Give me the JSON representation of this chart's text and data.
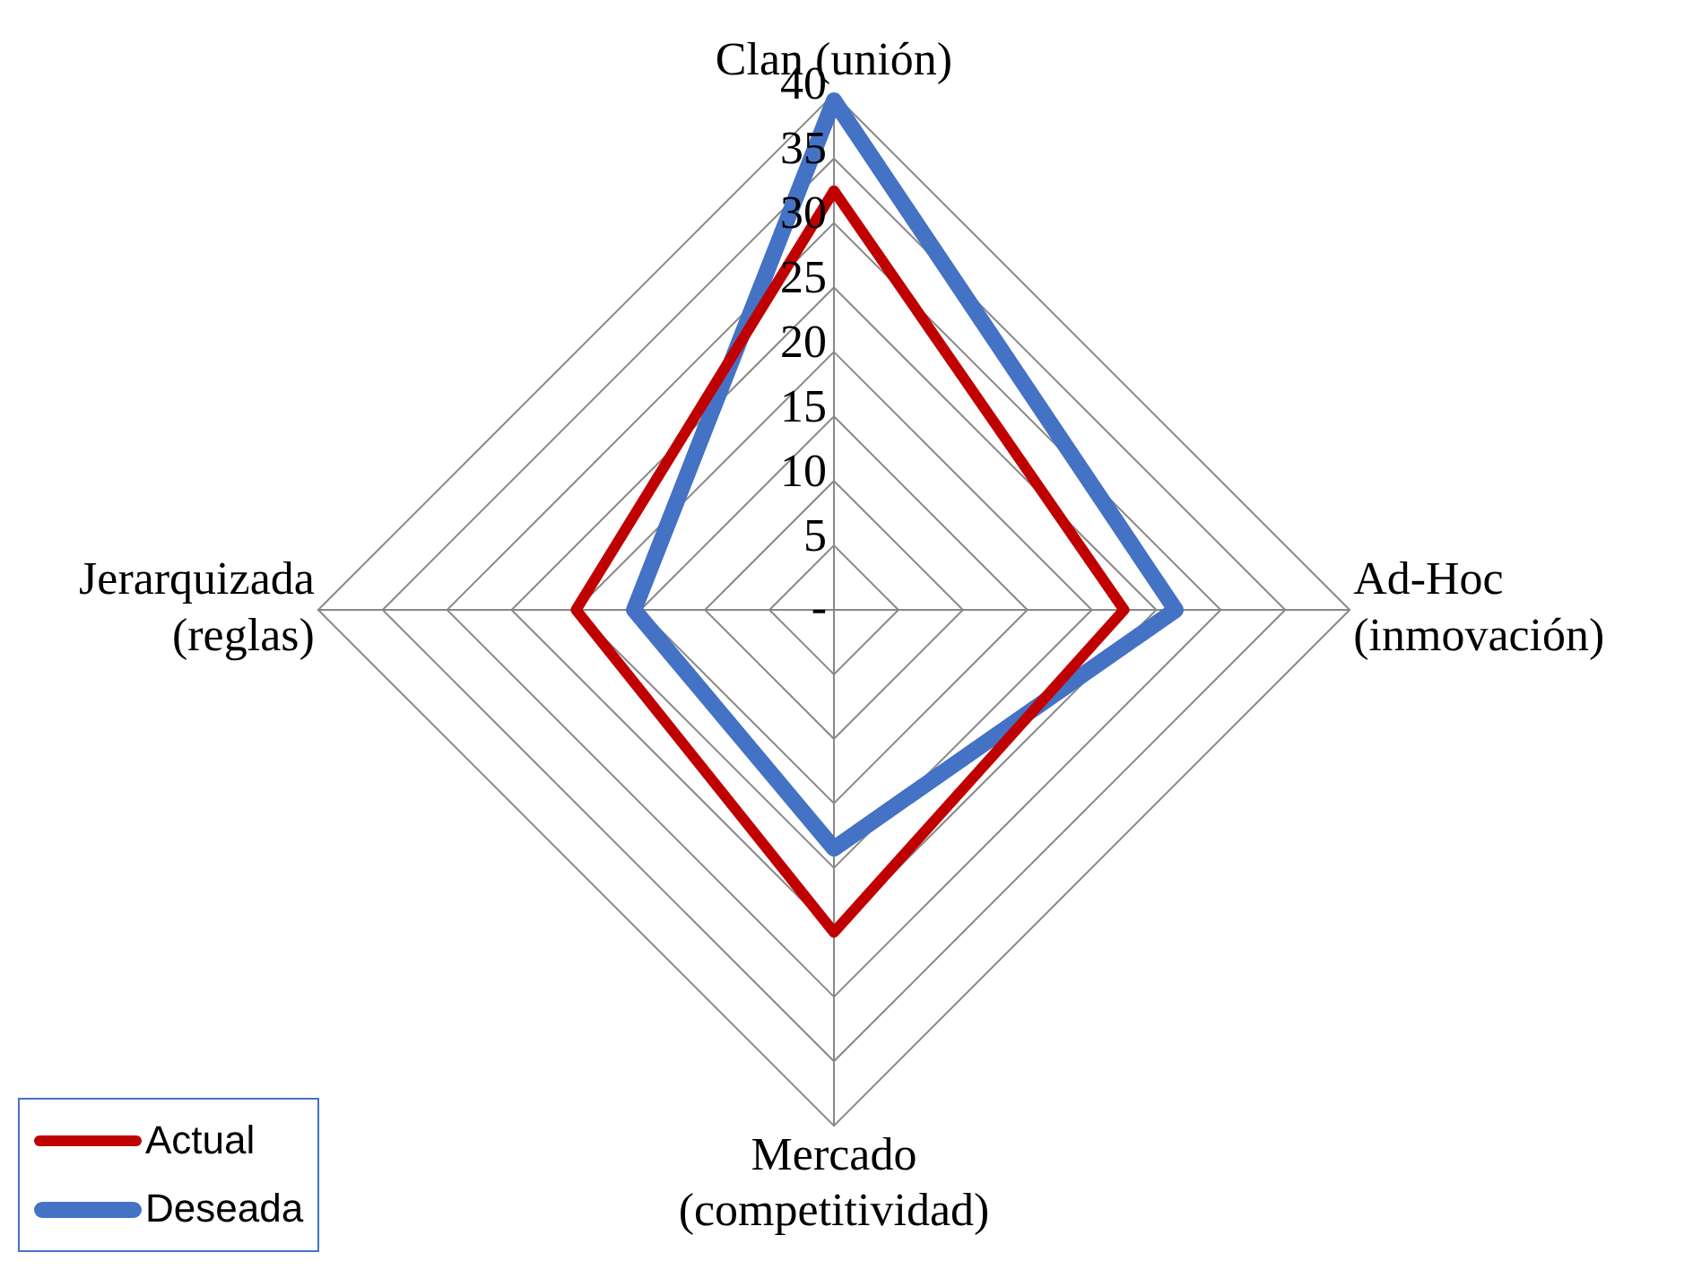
{
  "chart_data": {
    "type": "radar",
    "categories": [
      "Clan (unión)",
      "Ad-Hoc (inmovación)",
      "Mercado (competitividad)",
      "Jerarquizada (reglas)"
    ],
    "series": [
      {
        "name": "Actual",
        "color": "#c00000",
        "values": [
          32.5,
          22.5,
          25,
          20
        ]
      },
      {
        "name": "Deseada",
        "color": "#4472c4",
        "values": [
          39.5,
          26.5,
          18.5,
          15.5
        ]
      }
    ],
    "ylim": [
      0,
      40
    ],
    "yticks": [
      {
        "value": 0,
        "label": "-"
      },
      5,
      10,
      15,
      20,
      25,
      30,
      35,
      40
    ],
    "grid": true,
    "legend": "bottom left",
    "marker": "none",
    "line_style": "solid"
  }
}
